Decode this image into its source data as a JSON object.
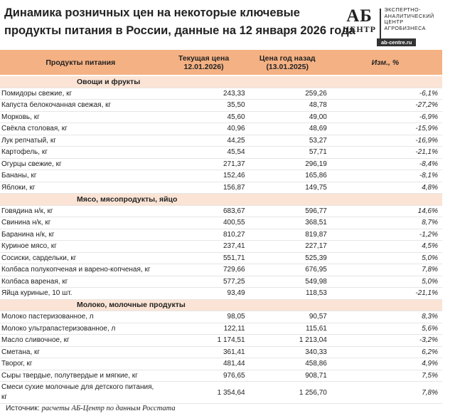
{
  "header": {
    "title_line1": "Динамика розничных цен на некоторые ключевые",
    "title_line2": "продукты питания в России, данные на 12 января 2026 года",
    "logo": {
      "mark": "АБ",
      "mark_sub": "ЦЕНТР",
      "lines": [
        "ЭКСПЕРТНО-",
        "АНАЛИТИЧЕСКИЙ",
        "ЦЕНТР",
        "АГРОБИЗНЕСА"
      ],
      "site": "ab-centre.ru"
    }
  },
  "table": {
    "columns": [
      [
        "Продукты питания"
      ],
      [
        "Текущая цена",
        "12.01.2026)"
      ],
      [
        "Цена год назад",
        "(13.01.2025)"
      ],
      [
        "Изм., %"
      ]
    ],
    "sections": [
      {
        "title": "Овощи и фрукты",
        "rows": [
          [
            "Помидоры свежие, кг",
            "243,33",
            "259,26",
            "-6,1%"
          ],
          [
            "Капуста белокочанная свежая, кг",
            "35,50",
            "48,78",
            "-27,2%"
          ],
          [
            "Морковь, кг",
            "45,60",
            "49,00",
            "-6,9%"
          ],
          [
            "Свёкла столовая, кг",
            "40,96",
            "48,69",
            "-15,9%"
          ],
          [
            "Лук репчатый, кг",
            "44,25",
            "53,27",
            "-16,9%"
          ],
          [
            "Картофель, кг",
            "45,54",
            "57,71",
            "-21,1%"
          ],
          [
            "Огурцы свежие, кг",
            "271,37",
            "296,19",
            "-8,4%"
          ],
          [
            "Бананы, кг",
            "152,46",
            "165,86",
            "-8,1%"
          ],
          [
            "Яблоки, кг",
            "156,87",
            "149,75",
            "4,8%"
          ]
        ]
      },
      {
        "title": "Мясо, мясопродукты, яйцо",
        "rows": [
          [
            "Говядина н/к, кг",
            "683,67",
            "596,77",
            "14,6%"
          ],
          [
            "Свинина н/к, кг",
            "400,55",
            "368,51",
            "8,7%"
          ],
          [
            "Баранина н/к, кг",
            "810,27",
            "819,87",
            "-1,2%"
          ],
          [
            "Куриное мясо, кг",
            "237,41",
            "227,17",
            "4,5%"
          ],
          [
            "Сосиски, сардельки, кг",
            "551,71",
            "525,39",
            "5,0%"
          ],
          [
            "Колбаса полукопченая и варено-копченая, кг",
            "729,66",
            "676,95",
            "7,8%"
          ],
          [
            "Колбаса вареная, кг",
            "577,25",
            "549,98",
            "5,0%"
          ],
          [
            "Яйца куриные, 10 шт.",
            "93,49",
            "118,53",
            "-21,1%"
          ]
        ]
      },
      {
        "title": "Молоко, молочные продукты",
        "rows": [
          [
            "Молоко пастеризованное, л",
            "98,05",
            "90,57",
            "8,3%"
          ],
          [
            "Молоко ультрапастеризованное, л",
            "122,11",
            "115,61",
            "5,6%"
          ],
          [
            "Масло сливочное, кг",
            "1 174,51",
            "1 213,04",
            "-3,2%"
          ],
          [
            "Сметана, кг",
            "361,41",
            "340,33",
            "6,2%"
          ],
          [
            "Творог, кг",
            "481,44",
            "458,86",
            "4,9%"
          ],
          [
            "Сыры твердые, полутвердые и мягкие, кг",
            "976,65",
            "908,71",
            "7,5%"
          ],
          [
            "Смеси сухие молочные для детского питания, кг",
            "1 354,64",
            "1 256,70",
            "7,8%"
          ]
        ]
      }
    ]
  },
  "footer": {
    "label": "Источник:",
    "text": "расчеты АБ-Центр по данным Росстата"
  }
}
